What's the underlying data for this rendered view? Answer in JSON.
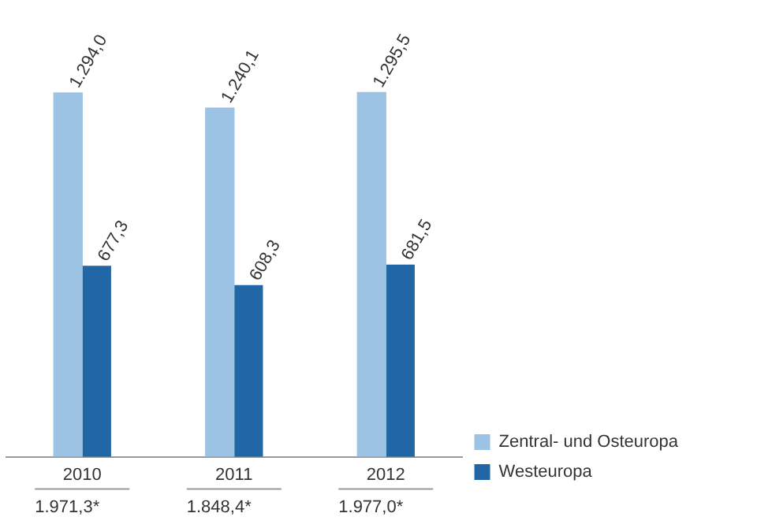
{
  "chart_data": {
    "type": "bar",
    "categories": [
      "2010",
      "2011",
      "2012"
    ],
    "series": [
      {
        "name": "Zentral- und Osteuropa",
        "color": "#9dc3e4",
        "values": [
          1294.0,
          1240.1,
          1295.5
        ],
        "value_labels": [
          "1.294,0",
          "1.240,1",
          "1.295,5"
        ]
      },
      {
        "name": "Westeuropa",
        "color": "#2166a5",
        "values": [
          677.3,
          608.3,
          681.5
        ],
        "value_labels": [
          "677,3",
          "608,3",
          "681,5"
        ]
      }
    ],
    "totals": [
      "1.971,3*",
      "1.848,4*",
      "1.977,0*"
    ],
    "legend": "bottom right"
  }
}
